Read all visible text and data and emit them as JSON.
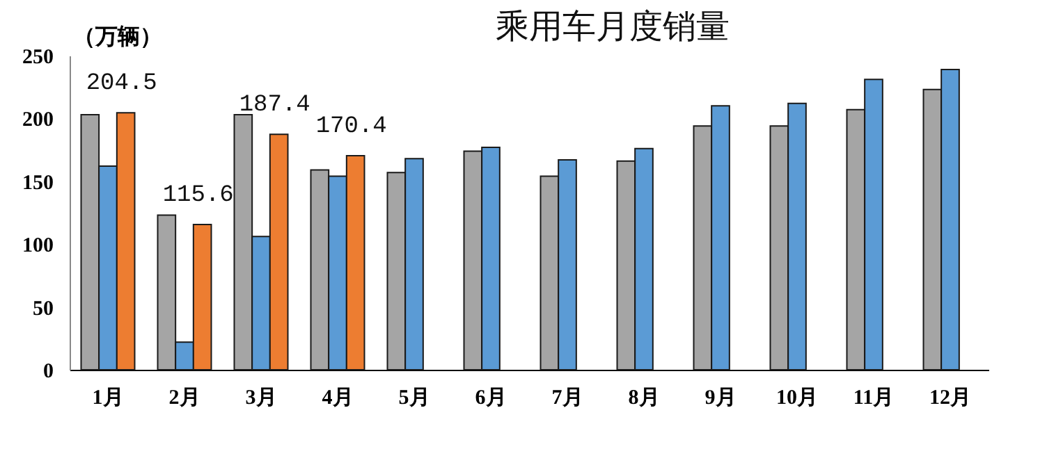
{
  "chart_data": {
    "type": "bar",
    "title": "乘用车月度销量",
    "ylabel": "（万辆）",
    "categories": [
      "1月",
      "2月",
      "3月",
      "4月",
      "5月",
      "6月",
      "7月",
      "8月",
      "9月",
      "10月",
      "11月",
      "12月"
    ],
    "series": [
      {
        "color": "#a5a5a5",
        "values": [
          203,
          123,
          203,
          159,
          157,
          174,
          154,
          166,
          194,
          194,
          207,
          223
        ]
      },
      {
        "color": "#5b9bd5",
        "values": [
          162,
          22,
          106,
          154,
          168,
          177,
          167,
          176,
          210,
          212,
          231,
          239
        ]
      },
      {
        "color": "#ed7d31",
        "values": [
          204.5,
          115.6,
          187.4,
          170.4,
          null,
          null,
          null,
          null,
          null,
          null,
          null,
          null
        ],
        "value_labels": [
          "204.5",
          "115.6",
          "187.4",
          "170.4",
          null,
          null,
          null,
          null,
          null,
          null,
          null,
          null
        ]
      }
    ],
    "ylim": [
      0,
      250
    ],
    "yticks": [
      0,
      50,
      100,
      150,
      200,
      250
    ]
  }
}
